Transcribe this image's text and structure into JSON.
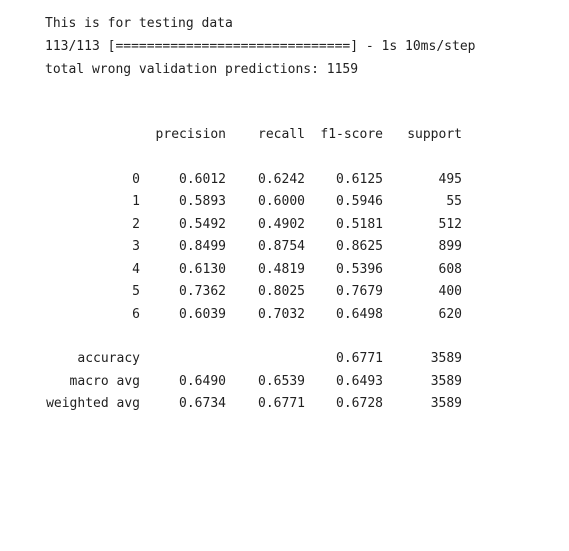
{
  "output": {
    "lines": [
      "This is for testing data",
      "113/113 [==============================] - 1s 10ms/step",
      "total wrong validation predictions: 1159"
    ]
  },
  "report": {
    "headers": {
      "precision": "precision",
      "recall": "recall",
      "f1": "f1-score",
      "support": "support"
    },
    "class_rows": [
      {
        "label": "0",
        "precision": "0.6012",
        "recall": "0.6242",
        "f1": "0.6125",
        "support": "495"
      },
      {
        "label": "1",
        "precision": "0.5893",
        "recall": "0.6000",
        "f1": "0.5946",
        "support": "55"
      },
      {
        "label": "2",
        "precision": "0.5492",
        "recall": "0.4902",
        "f1": "0.5181",
        "support": "512"
      },
      {
        "label": "3",
        "precision": "0.8499",
        "recall": "0.8754",
        "f1": "0.8625",
        "support": "899"
      },
      {
        "label": "4",
        "precision": "0.6130",
        "recall": "0.4819",
        "f1": "0.5396",
        "support": "608"
      },
      {
        "label": "5",
        "precision": "0.7362",
        "recall": "0.8025",
        "f1": "0.7679",
        "support": "400"
      },
      {
        "label": "6",
        "precision": "0.6039",
        "recall": "0.7032",
        "f1": "0.6498",
        "support": "620"
      }
    ],
    "summary_rows": [
      {
        "label": "accuracy",
        "precision": "",
        "recall": "",
        "f1": "0.6771",
        "support": "3589"
      },
      {
        "label": "macro avg",
        "precision": "0.6490",
        "recall": "0.6539",
        "f1": "0.6493",
        "support": "3589"
      },
      {
        "label": "weighted avg",
        "precision": "0.6734",
        "recall": "0.6771",
        "f1": "0.6728",
        "support": "3589"
      }
    ]
  }
}
